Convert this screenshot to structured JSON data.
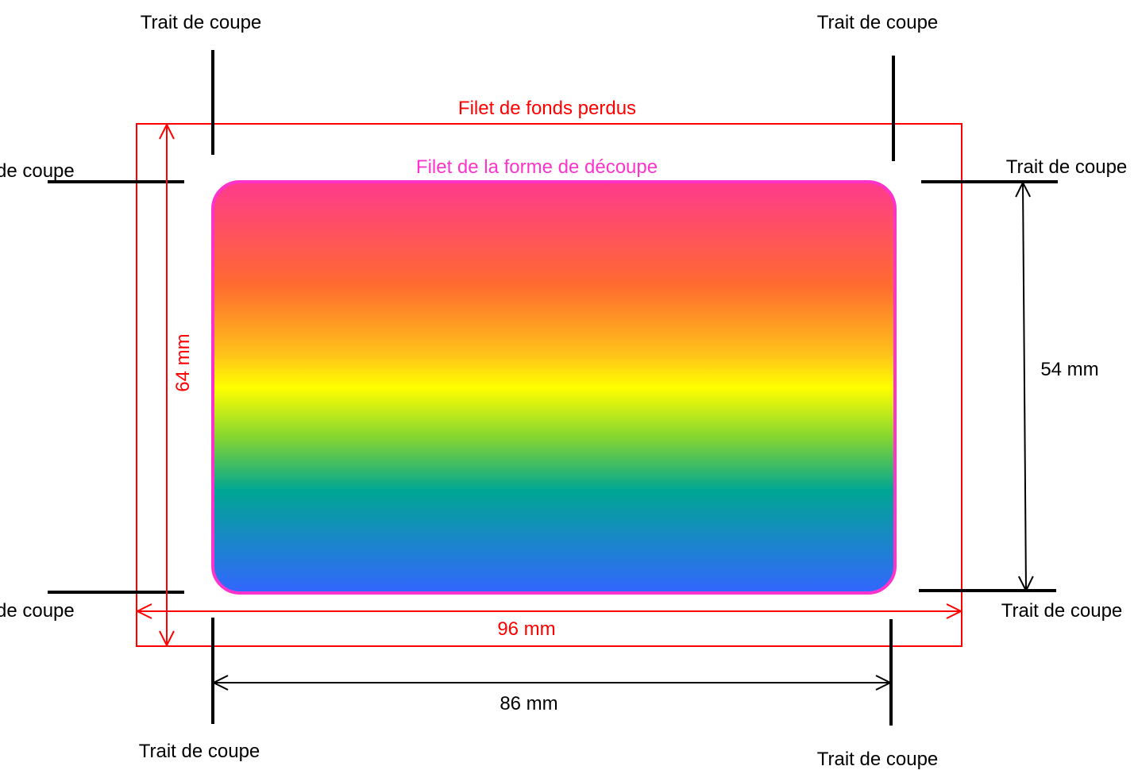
{
  "labels": {
    "crop_mark": "Trait de coupe",
    "crop_mark_left_cut": "de coupe",
    "bleed_line": "Filet de fonds perdus",
    "die_cut_line": "Filet de la forme de découpe"
  },
  "dimensions": {
    "bleed_width": "96 mm",
    "bleed_height": "64 mm",
    "trim_width": "86 mm",
    "trim_height": "54 mm"
  },
  "colors": {
    "bleed": "#ff0000",
    "die_cut": "#ff33cc",
    "crop_mark": "#000000",
    "gradient": [
      "#ff3a8c",
      "#ff6a30",
      "#ffc21a",
      "#ffff00",
      "#86d630",
      "#00a693",
      "#3366ff"
    ]
  }
}
